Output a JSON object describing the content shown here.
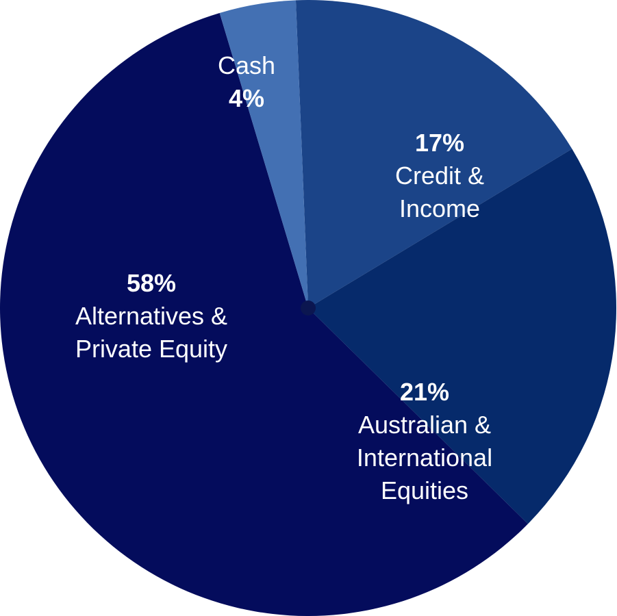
{
  "chart_data": {
    "type": "pie",
    "categories": [
      "Credit & Income",
      "Australian & International Equities",
      "Alternatives & Private Equity",
      "Cash"
    ],
    "values": [
      17,
      21,
      58,
      4
    ],
    "value_labels": [
      "17%",
      "21%",
      "58%",
      "4%"
    ],
    "colors": [
      "#1b4488",
      "#062a6b",
      "#040c5c",
      "#4370b3"
    ]
  }
}
